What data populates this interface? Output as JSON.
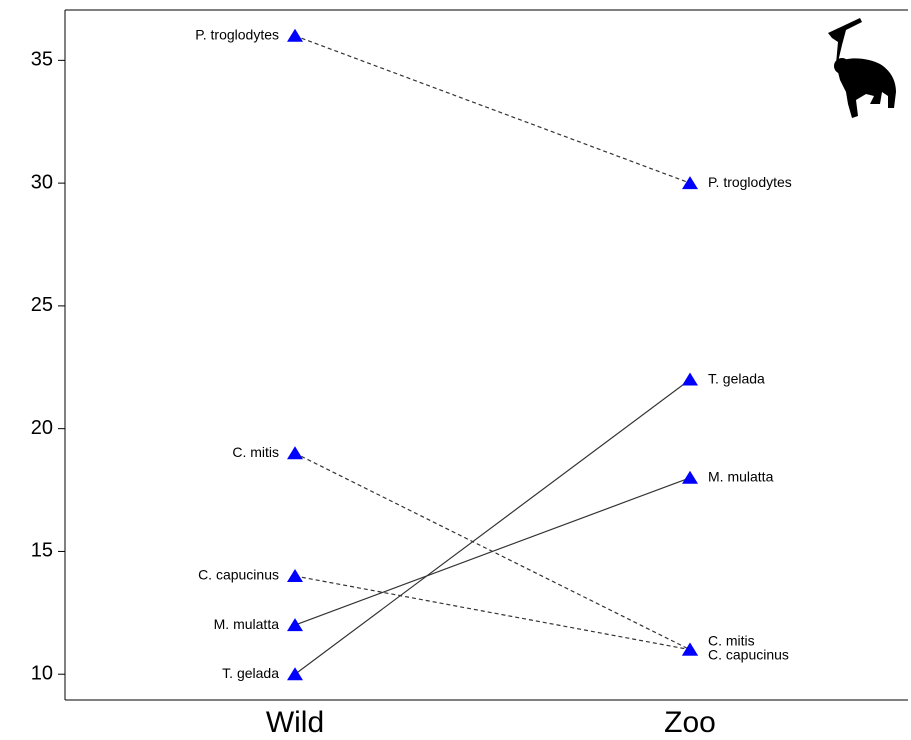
{
  "chart_data": {
    "type": "slope",
    "categories": [
      "Wild",
      "Zoo"
    ],
    "series": [
      {
        "name": "P. troglodytes",
        "values": [
          36,
          30
        ],
        "dashed": true
      },
      {
        "name": "C. mitis",
        "values": [
          19,
          11
        ],
        "dashed": true
      },
      {
        "name": "C. capucinus",
        "values": [
          14,
          11
        ],
        "dashed": true
      },
      {
        "name": "M. mulatta",
        "values": [
          12,
          18
        ],
        "dashed": false
      },
      {
        "name": "T. gelada",
        "values": [
          10,
          22
        ],
        "dashed": false
      }
    ],
    "marker_color": "#0000ff",
    "line_color": "#333333",
    "ylim": [
      8.95,
      37.05
    ],
    "yticks": [
      10,
      15,
      20,
      25,
      30,
      35
    ]
  }
}
